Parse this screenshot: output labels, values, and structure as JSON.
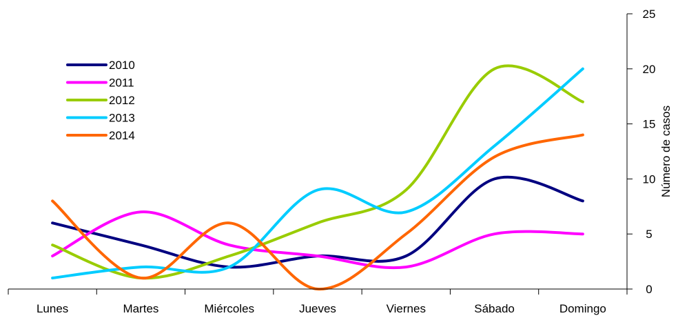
{
  "chart_data": {
    "type": "line",
    "title": "",
    "xlabel": "",
    "ylabel": "Número de casos",
    "ylim": [
      0,
      25
    ],
    "yticks": [
      0,
      5,
      10,
      15,
      20,
      25
    ],
    "y_axis_side": "right",
    "smooth": true,
    "grid": false,
    "legend_position": "top-left",
    "categories": [
      "Lunes",
      "Martes",
      "Miércoles",
      "Jueves",
      "Viernes",
      "Sábado",
      "Domingo"
    ],
    "series": [
      {
        "name": "2010",
        "color": "#000080",
        "values": [
          6,
          4,
          2,
          3,
          3,
          10,
          8
        ]
      },
      {
        "name": "2011",
        "color": "#FF00FF",
        "values": [
          3,
          7,
          4,
          3,
          2,
          5,
          5
        ]
      },
      {
        "name": "2012",
        "color": "#99CC00",
        "values": [
          4,
          1,
          3,
          6,
          9,
          20,
          17
        ]
      },
      {
        "name": "2013",
        "color": "#00CCFF",
        "values": [
          1,
          2,
          2,
          9,
          7,
          13,
          20
        ]
      },
      {
        "name": "2014",
        "color": "#FF6600",
        "values": [
          8,
          1,
          6,
          0,
          5,
          12,
          14
        ]
      }
    ]
  }
}
